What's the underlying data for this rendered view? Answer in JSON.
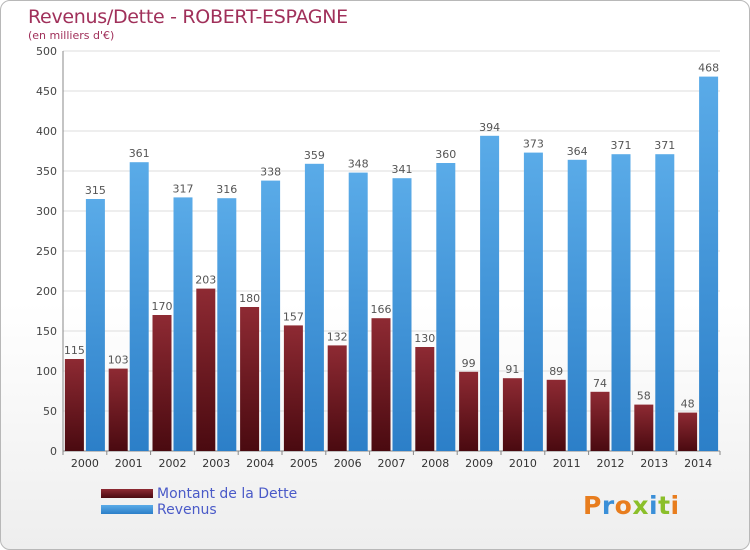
{
  "header": {
    "title": "Revenus/Dette - ROBERT-ESPAGNE",
    "subtitle": "(en milliers d'€)"
  },
  "legend": {
    "items": [
      {
        "label": "Montant de la Dette",
        "color": "#7a1e28"
      },
      {
        "label": "Revenus",
        "color": "#3a8fd8"
      }
    ]
  },
  "logo": {
    "text": "Proxiti",
    "letters": [
      {
        "ch": "P",
        "color": "#e87d1e"
      },
      {
        "ch": "r",
        "color": "#3a8fd8"
      },
      {
        "ch": "o",
        "color": "#e87d1e"
      },
      {
        "ch": "x",
        "color": "#8bbf2a"
      },
      {
        "ch": "i",
        "color": "#3a8fd8"
      },
      {
        "ch": "t",
        "color": "#8bbf2a"
      },
      {
        "ch": "i",
        "color": "#e87d1e"
      }
    ]
  },
  "chart_data": {
    "type": "bar",
    "title": "Revenus/Dette - ROBERT-ESPAGNE",
    "subtitle": "(en milliers d'€)",
    "categories": [
      "2000",
      "2001",
      "2002",
      "2003",
      "2004",
      "2005",
      "2006",
      "2007",
      "2008",
      "2009",
      "2010",
      "2011",
      "2012",
      "2013",
      "2014"
    ],
    "series": [
      {
        "name": "Montant de la Dette",
        "color": "#7a1e28",
        "values": [
          115,
          103,
          170,
          203,
          180,
          157,
          132,
          166,
          130,
          99,
          91,
          89,
          74,
          58,
          48
        ]
      },
      {
        "name": "Revenus",
        "color": "#3a8fd8",
        "values": [
          315,
          361,
          317,
          316,
          338,
          359,
          348,
          341,
          360,
          394,
          373,
          364,
          371,
          371,
          468
        ]
      }
    ],
    "ylim": [
      0,
      500
    ],
    "yticks": [
      0,
      50,
      100,
      150,
      200,
      250,
      300,
      350,
      400,
      450,
      500
    ],
    "grid": true,
    "legend": "bottom-left"
  }
}
